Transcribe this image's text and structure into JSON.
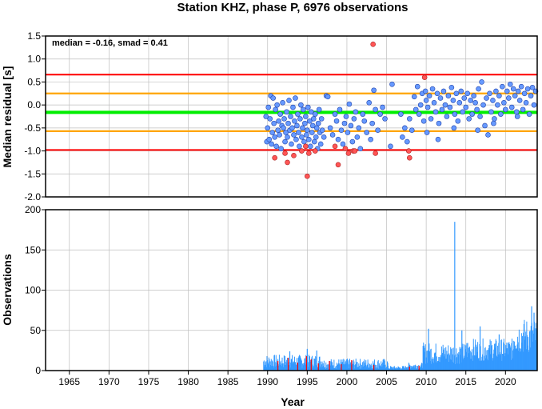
{
  "title": "Station KHZ, phase P, 6976 observations",
  "colors": {
    "red_line": "#ff0000",
    "orange_line": "#ffa500",
    "green_line": "#00ee00",
    "point_fill": "#6699ff",
    "outlier_fill": "#ff5555",
    "bar_blue": "#3399ff",
    "bar_red": "#ff0000",
    "grid": "#bfbfbf"
  },
  "chart_data": [
    {
      "type": "scatter",
      "name": "residuals",
      "title": "Station KHZ, phase P, 6976 observations",
      "xlabel": "",
      "ylabel": "Median residual [s]",
      "xlim": [
        1962,
        2024
      ],
      "ylim": [
        -2.0,
        1.5
      ],
      "yticks": [
        "-2.0",
        "-1.5",
        "-1.0",
        "-0.5",
        "0.0",
        "0.5",
        "1.0",
        "1.5"
      ],
      "grid": true,
      "annotation": "median = -0.16, smad = 0.41",
      "hlines": [
        {
          "y": 0.66,
          "color": "red"
        },
        {
          "y": 0.25,
          "color": "orange"
        },
        {
          "y": -0.16,
          "color": "green"
        },
        {
          "y": -0.57,
          "color": "orange"
        },
        {
          "y": -0.98,
          "color": "red"
        }
      ],
      "points": [
        [
          1989.8,
          -0.25
        ],
        [
          1989.9,
          -0.8
        ],
        [
          1990.0,
          -0.5
        ],
        [
          1990.1,
          -0.05
        ],
        [
          1990.2,
          -0.75
        ],
        [
          1990.3,
          -0.3
        ],
        [
          1990.4,
          0.2
        ],
        [
          1990.5,
          -0.85
        ],
        [
          1990.6,
          -0.6
        ],
        [
          1990.7,
          0.15
        ],
        [
          1990.8,
          -0.4
        ],
        [
          1990.9,
          -0.7
        ],
        [
          1991.0,
          -0.1
        ],
        [
          1991.1,
          -0.9
        ],
        [
          1991.2,
          0.0
        ],
        [
          1991.3,
          -0.55
        ],
        [
          1991.4,
          -0.35
        ],
        [
          1991.5,
          -0.65
        ],
        [
          1991.6,
          -0.2
        ],
        [
          1991.7,
          -0.95
        ],
        [
          1991.8,
          -0.45
        ],
        [
          1991.9,
          0.05
        ],
        [
          1992.0,
          -0.5
        ],
        [
          1992.1,
          -0.3
        ],
        [
          1992.2,
          -0.8
        ],
        [
          1992.3,
          -0.6
        ],
        [
          1992.4,
          -0.15
        ],
        [
          1992.5,
          -0.7
        ],
        [
          1992.6,
          -0.4
        ],
        [
          1992.7,
          0.1
        ],
        [
          1992.8,
          -0.55
        ],
        [
          1992.9,
          -0.25
        ],
        [
          1993.0,
          -0.85
        ],
        [
          1993.1,
          -0.5
        ],
        [
          1993.2,
          -0.05
        ],
        [
          1993.3,
          -0.65
        ],
        [
          1993.4,
          -0.35
        ],
        [
          1993.5,
          0.15
        ],
        [
          1993.6,
          -0.75
        ],
        [
          1993.7,
          -0.45
        ],
        [
          1993.8,
          -0.2
        ],
        [
          1993.9,
          -0.6
        ],
        [
          1994.0,
          -0.9
        ],
        [
          1994.1,
          -0.3
        ],
        [
          1994.2,
          0.0
        ],
        [
          1994.3,
          -0.7
        ],
        [
          1994.4,
          -0.5
        ],
        [
          1994.5,
          -0.1
        ],
        [
          1994.6,
          -0.8
        ],
        [
          1994.7,
          -0.4
        ],
        [
          1994.8,
          -0.25
        ],
        [
          1994.9,
          -0.65
        ],
        [
          1995.0,
          -0.55
        ],
        [
          1995.1,
          -0.05
        ],
        [
          1995.2,
          -0.75
        ],
        [
          1995.3,
          -0.35
        ],
        [
          1995.4,
          -0.9
        ],
        [
          1995.5,
          -0.15
        ],
        [
          1995.6,
          -0.6
        ],
        [
          1995.7,
          -0.45
        ],
        [
          1995.8,
          -0.3
        ],
        [
          1995.9,
          -0.8
        ],
        [
          1996.0,
          -0.2
        ],
        [
          1996.1,
          -0.7
        ],
        [
          1996.2,
          -0.5
        ],
        [
          1996.3,
          -0.95
        ],
        [
          1996.4,
          -0.4
        ],
        [
          1996.5,
          -0.1
        ],
        [
          1996.6,
          -0.6
        ],
        [
          1996.7,
          -0.85
        ],
        [
          1996.8,
          -0.3
        ],
        [
          1996.9,
          -0.55
        ],
        [
          1997.1,
          -0.7
        ],
        [
          1997.4,
          0.2
        ],
        [
          1997.6,
          0.18
        ],
        [
          1997.9,
          -0.5
        ],
        [
          1998.2,
          -0.65
        ],
        [
          1998.5,
          -0.2
        ],
        [
          1998.7,
          -0.35
        ],
        [
          1998.9,
          -0.75
        ],
        [
          1999.1,
          -0.1
        ],
        [
          1999.3,
          -0.55
        ],
        [
          1999.5,
          -0.85
        ],
        [
          1999.7,
          -0.4
        ],
        [
          1999.9,
          -0.25
        ],
        [
          2000.1,
          -0.6
        ],
        [
          2000.3,
          0.02
        ],
        [
          2000.5,
          -0.45
        ],
        [
          2000.7,
          -0.8
        ],
        [
          2000.9,
          -0.3
        ],
        [
          2001.1,
          -0.15
        ],
        [
          2001.3,
          -0.7
        ],
        [
          2001.5,
          -0.5
        ],
        [
          2001.7,
          -0.95
        ],
        [
          2002.0,
          -0.2
        ],
        [
          2002.2,
          -0.35
        ],
        [
          2002.5,
          -0.6
        ],
        [
          2002.8,
          0.05
        ],
        [
          2003.0,
          -0.75
        ],
        [
          2003.2,
          -0.4
        ],
        [
          2003.4,
          0.32
        ],
        [
          2003.6,
          -0.1
        ],
        [
          2003.9,
          -0.55
        ],
        [
          2004.2,
          -0.2
        ],
        [
          2004.5,
          -0.05
        ],
        [
          2004.8,
          -0.3
        ],
        [
          2005.5,
          -0.9
        ],
        [
          2005.7,
          0.45
        ],
        [
          2006.8,
          -0.2
        ],
        [
          2007.0,
          -0.7
        ],
        [
          2007.3,
          -0.5
        ],
        [
          2007.6,
          -0.8
        ],
        [
          2007.9,
          -0.3
        ],
        [
          2008.2,
          -0.55
        ],
        [
          2008.5,
          0.18
        ],
        [
          2008.7,
          -0.1
        ],
        [
          2008.9,
          0.4
        ],
        [
          2009.1,
          -0.2
        ],
        [
          2009.3,
          0.0
        ],
        [
          2009.5,
          0.25
        ],
        [
          2009.7,
          -0.35
        ],
        [
          2009.9,
          0.3
        ],
        [
          2010.0,
          0.1
        ],
        [
          2010.2,
          -0.05
        ],
        [
          2010.4,
          0.2
        ],
        [
          2010.6,
          -0.3
        ],
        [
          2010.8,
          0.35
        ],
        [
          2011.0,
          0.05
        ],
        [
          2011.2,
          -0.15
        ],
        [
          2011.4,
          0.25
        ],
        [
          2011.6,
          -0.4
        ],
        [
          2011.8,
          0.15
        ],
        [
          2012.0,
          -0.1
        ],
        [
          2012.2,
          0.3
        ],
        [
          2012.4,
          0.0
        ],
        [
          2012.6,
          -0.25
        ],
        [
          2012.8,
          0.2
        ],
        [
          2013.0,
          -0.05
        ],
        [
          2013.2,
          0.38
        ],
        [
          2013.4,
          0.1
        ],
        [
          2013.6,
          -0.2
        ],
        [
          2013.8,
          0.25
        ],
        [
          2014.0,
          -0.35
        ],
        [
          2014.2,
          0.05
        ],
        [
          2014.4,
          0.3
        ],
        [
          2014.6,
          -0.15
        ],
        [
          2014.8,
          0.15
        ],
        [
          2015.0,
          -0.05
        ],
        [
          2015.2,
          0.25
        ],
        [
          2015.4,
          -0.3
        ],
        [
          2015.6,
          0.1
        ],
        [
          2015.8,
          -0.2
        ],
        [
          2016.0,
          0.2
        ],
        [
          2016.2,
          0.05
        ],
        [
          2016.4,
          -0.1
        ],
        [
          2016.6,
          0.35
        ],
        [
          2016.8,
          -0.25
        ],
        [
          2017.0,
          0.5
        ],
        [
          2017.2,
          0.0
        ],
        [
          2017.4,
          -0.45
        ],
        [
          2017.6,
          0.15
        ],
        [
          2017.8,
          -0.65
        ],
        [
          2018.0,
          0.25
        ],
        [
          2018.2,
          -0.15
        ],
        [
          2018.4,
          0.1
        ],
        [
          2018.6,
          -0.3
        ],
        [
          2018.8,
          0.3
        ],
        [
          2019.0,
          0.0
        ],
        [
          2019.2,
          0.2
        ],
        [
          2019.4,
          -0.2
        ],
        [
          2019.6,
          0.4
        ],
        [
          2019.8,
          0.05
        ],
        [
          2020.0,
          -0.1
        ],
        [
          2020.2,
          0.3
        ],
        [
          2020.4,
          0.15
        ],
        [
          2020.6,
          0.45
        ],
        [
          2020.8,
          -0.05
        ],
        [
          2021.0,
          0.35
        ],
        [
          2021.2,
          0.2
        ],
        [
          2021.4,
          -0.15
        ],
        [
          2021.6,
          0.3
        ],
        [
          2021.8,
          0.1
        ],
        [
          2022.0,
          0.4
        ],
        [
          2022.2,
          -0.1
        ],
        [
          2022.4,
          0.25
        ],
        [
          2022.6,
          0.05
        ],
        [
          2022.8,
          0.35
        ],
        [
          2023.0,
          -0.2
        ],
        [
          2023.2,
          0.2
        ],
        [
          2023.4,
          0.38
        ],
        [
          2023.6,
          0.0
        ],
        [
          2023.8,
          0.3
        ],
        [
          2010.1,
          -0.6
        ],
        [
          2011.5,
          -0.75
        ],
        [
          2013.5,
          -0.5
        ],
        [
          2016.5,
          -0.55
        ],
        [
          2018.5,
          -0.4
        ],
        [
          2021.5,
          -0.25
        ]
      ],
      "outliers": [
        [
          1990.9,
          -1.15
        ],
        [
          1992.2,
          -1.05
        ],
        [
          1992.5,
          -1.25
        ],
        [
          1993.3,
          -1.1
        ],
        [
          1994.3,
          -1.0
        ],
        [
          1994.8,
          -0.9
        ],
        [
          1995.0,
          -1.55
        ],
        [
          1995.2,
          -1.05
        ],
        [
          1996.0,
          -1.0
        ],
        [
          1998.5,
          -0.9
        ],
        [
          1998.9,
          -1.3
        ],
        [
          1999.8,
          -0.95
        ],
        [
          2000.2,
          -1.05
        ],
        [
          2000.8,
          -1.0
        ],
        [
          2001.0,
          -1.0
        ],
        [
          2003.3,
          1.32
        ],
        [
          2003.6,
          -1.05
        ],
        [
          2007.8,
          -1.0
        ],
        [
          2007.9,
          -1.15
        ],
        [
          2009.8,
          0.6
        ]
      ]
    },
    {
      "type": "bar",
      "name": "observations",
      "xlabel": "Year",
      "ylabel": "Observations",
      "xlim": [
        1962,
        2024
      ],
      "ylim": [
        0,
        200
      ],
      "yticks": [
        "0",
        "50",
        "100",
        "150",
        "200"
      ],
      "xticks": [
        "1965",
        "1970",
        "1975",
        "1980",
        "1985",
        "1990",
        "1995",
        "2000",
        "2005",
        "2010",
        "2015",
        "2020"
      ],
      "grid": true,
      "segments": [
        {
          "start": 1989.5,
          "end": 1997.0,
          "low": 3,
          "high": 20
        },
        {
          "start": 1997.0,
          "end": 2005.2,
          "low": 2,
          "high": 15
        },
        {
          "start": 2005.2,
          "end": 2007.5,
          "low": 1,
          "high": 6
        },
        {
          "start": 2007.5,
          "end": 2009.6,
          "low": 2,
          "high": 10
        },
        {
          "start": 2009.6,
          "end": 2015.0,
          "low": 8,
          "high": 35
        },
        {
          "start": 2015.0,
          "end": 2021.0,
          "low": 12,
          "high": 40
        },
        {
          "start": 2021.0,
          "end": 2024.0,
          "low": 20,
          "high": 65
        }
      ],
      "peaks": [
        {
          "x": 2013.6,
          "value": 185
        },
        {
          "x": 2010.3,
          "value": 52
        },
        {
          "x": 2014.5,
          "value": 50
        },
        {
          "x": 2016.8,
          "value": 55
        },
        {
          "x": 2019.2,
          "value": 45
        },
        {
          "x": 2023.3,
          "value": 80
        },
        {
          "x": 2023.6,
          "value": 72
        },
        {
          "x": 1995.0,
          "value": 27
        },
        {
          "x": 1996.2,
          "value": 25
        },
        {
          "x": 1992.8,
          "value": 24
        }
      ],
      "red_bars": [
        {
          "x": 1991.3,
          "value": 12
        },
        {
          "x": 1992.6,
          "value": 16
        },
        {
          "x": 1993.8,
          "value": 10
        },
        {
          "x": 1994.9,
          "value": 18
        },
        {
          "x": 1995.5,
          "value": 14
        },
        {
          "x": 1996.4,
          "value": 9
        },
        {
          "x": 1997.8,
          "value": 12
        },
        {
          "x": 1999.3,
          "value": 8
        },
        {
          "x": 2000.6,
          "value": 13
        },
        {
          "x": 2003.4,
          "value": 7
        },
        {
          "x": 2007.9,
          "value": 5
        },
        {
          "x": 2009.1,
          "value": 6
        }
      ]
    }
  ]
}
